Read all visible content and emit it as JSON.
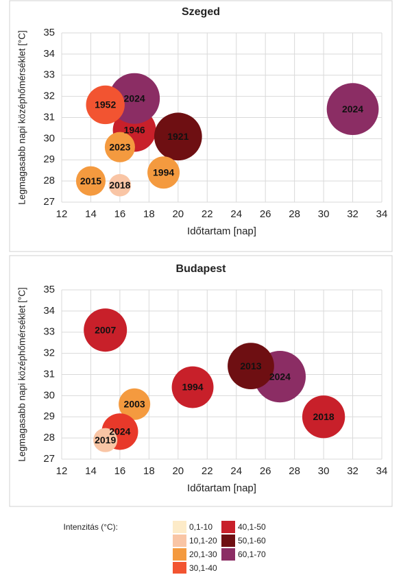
{
  "chart_data": [
    {
      "type": "scatter",
      "title": "Szeged",
      "xlabel": "Időtartam [nap]",
      "ylabel": "Legmagasabb napi középhőmérséklet [°C]",
      "xlim": [
        12,
        34
      ],
      "xticks": [
        12,
        14,
        16,
        18,
        20,
        22,
        24,
        26,
        28,
        30,
        32,
        34
      ],
      "ylim": [
        27,
        35
      ],
      "yticks": [
        27,
        28,
        29,
        30,
        31,
        32,
        33,
        34,
        35
      ],
      "grid": true,
      "labels": [
        "1946",
        "2024",
        "1952",
        "1921",
        "2023",
        "2015",
        "2018",
        "1994",
        "2024"
      ],
      "x": [
        17,
        17,
        15,
        20,
        16,
        14,
        16,
        19,
        32
      ],
      "y": [
        30.4,
        31.9,
        31.6,
        30.1,
        29.6,
        28.0,
        27.8,
        28.4,
        31.4
      ],
      "sizes": [
        45,
        62,
        36,
        55,
        22,
        21,
        12,
        25,
        65
      ],
      "colors": [
        "#c8202a",
        "#8b2d64",
        "#f25431",
        "#6e0f12",
        "#f49a3f",
        "#f49a3f",
        "#f9c5a5",
        "#f49a3f",
        "#8b2d64"
      ]
    },
    {
      "type": "scatter",
      "title": "Budapest",
      "xlabel": "Időtartam [nap]",
      "ylabel": "Legmagasabb napi középhőmérséklet [°C]",
      "xlim": [
        12,
        34
      ],
      "xticks": [
        12,
        14,
        16,
        18,
        20,
        22,
        24,
        26,
        28,
        30,
        32,
        34
      ],
      "ylim": [
        27,
        35
      ],
      "yticks": [
        27,
        28,
        29,
        30,
        31,
        32,
        33,
        34,
        35
      ],
      "grid": true,
      "labels": [
        "2007",
        "2024",
        "2013",
        "1994",
        "2018",
        "2003",
        "2024",
        "2019"
      ],
      "x": [
        15,
        27,
        25,
        21,
        30,
        17,
        16,
        15
      ],
      "y": [
        33.1,
        30.9,
        31.4,
        30.4,
        29.0,
        29.6,
        28.3,
        27.9
      ],
      "sizes": [
        45,
        64,
        52,
        42,
        44,
        24,
        32,
        14
      ],
      "colors": [
        "#c8202a",
        "#8b2d64",
        "#6e0f12",
        "#c8202a",
        "#c8202a",
        "#f49a3f",
        "#e8392a",
        "#f9c5a5"
      ]
    }
  ],
  "legend": {
    "title": "Intenzitás (°C):",
    "items": [
      {
        "label": "0,1-10",
        "color": "#fdebc8"
      },
      {
        "label": "10,1-20",
        "color": "#f9c5a5"
      },
      {
        "label": "20,1-30",
        "color": "#f49a3f"
      },
      {
        "label": "30,1-40",
        "color": "#f25431"
      },
      {
        "label": "40,1-50",
        "color": "#c8202a"
      },
      {
        "label": "50,1-60",
        "color": "#6e0f12"
      },
      {
        "label": "60,1-70",
        "color": "#8b2d64"
      }
    ]
  }
}
